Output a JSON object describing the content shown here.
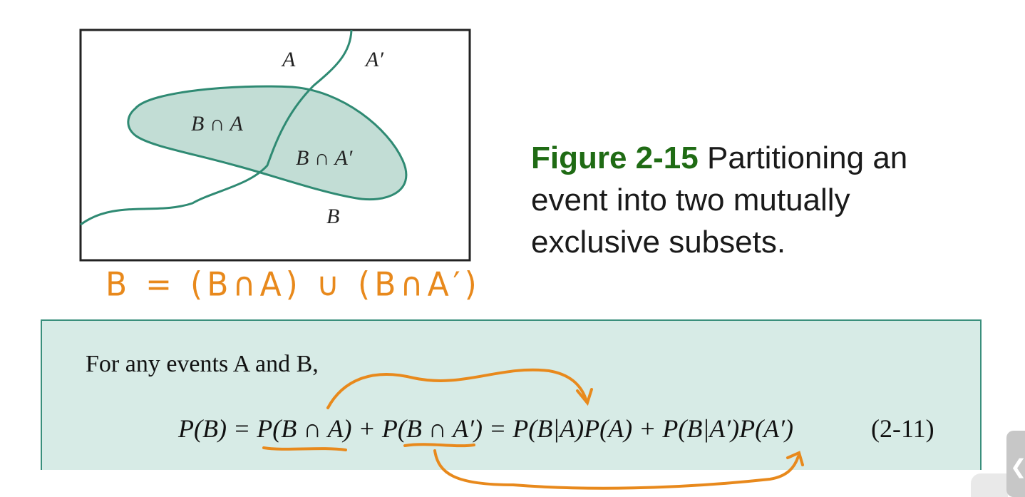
{
  "venn": {
    "label_a": "A",
    "label_a_prime": "A′",
    "label_b_int_a": "B ∩ A",
    "label_b_int_a_prime": "B ∩ A′",
    "label_b": "B"
  },
  "caption": {
    "figure_number": "Figure 2-15",
    "text": " Partitioning an event into two mutually exclusive subsets."
  },
  "handwritten_note": "B = (B∩A) ∪ (B∩A′)",
  "theorem": {
    "intro": "For any events A and B,",
    "equation": "P(B) = P(B ∩ A) + P(B ∩ A′) = P(B|A)P(A) + P(B|A′)P(A′)",
    "equation_number": "(2-11)"
  },
  "colors": {
    "figure_accent": "#1f6b14",
    "annotation_orange": "#e8891c",
    "venn_fill": "#c2ddd5",
    "venn_stroke": "#2f8a73",
    "box_fill": "#d7ebe6"
  },
  "side_tab_icon": "chevron-left-icon"
}
